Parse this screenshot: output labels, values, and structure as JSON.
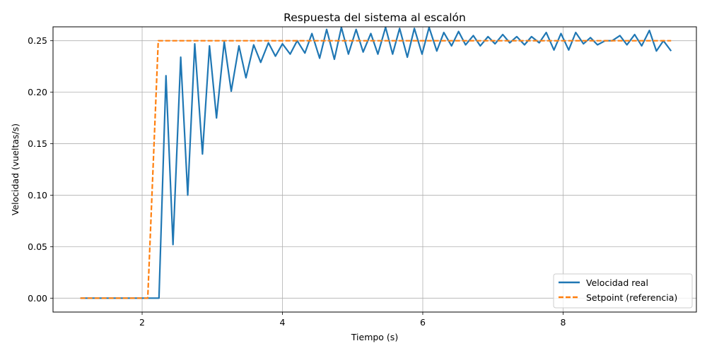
{
  "chart_data": {
    "type": "line",
    "title": "Respuesta del sistema al escalón",
    "xlabel": "Tiempo (s)",
    "ylabel": "Velocidad (vueltas/s)",
    "xlim": [
      0.73,
      9.9
    ],
    "ylim": [
      -0.0135,
      0.2635
    ],
    "xticks": [
      2,
      4,
      6,
      8
    ],
    "xtick_labels": [
      "2",
      "4",
      "6",
      "8"
    ],
    "yticks": [
      0.0,
      0.05,
      0.1,
      0.15,
      0.2,
      0.25
    ],
    "ytick_labels": [
      "0.00",
      "0.05",
      "0.10",
      "0.15",
      "0.20",
      "0.25"
    ],
    "grid": true,
    "legend_position": "lower-right",
    "series": [
      {
        "name": "Velocidad real",
        "color": "#1f77b4",
        "style": "solid",
        "x": [
          1.12,
          1.22,
          1.33,
          1.43,
          1.54,
          1.64,
          1.75,
          1.85,
          1.96,
          2.06,
          2.17,
          2.24,
          2.34,
          2.44,
          2.55,
          2.65,
          2.75,
          2.86,
          2.96,
          3.06,
          3.17,
          3.27,
          3.38,
          3.48,
          3.59,
          3.69,
          3.8,
          3.9,
          4.0,
          4.11,
          4.21,
          4.32,
          4.42,
          4.53,
          4.63,
          4.74,
          4.84,
          4.94,
          5.05,
          5.15,
          5.26,
          5.36,
          5.47,
          5.57,
          5.67,
          5.78,
          5.88,
          5.99,
          6.09,
          6.2,
          6.3,
          6.41,
          6.51,
          6.61,
          6.72,
          6.82,
          6.93,
          7.03,
          7.14,
          7.24,
          7.34,
          7.45,
          7.55,
          7.66,
          7.76,
          7.87,
          7.97,
          8.08,
          8.18,
          8.29,
          8.39,
          8.49,
          8.6,
          8.7,
          8.81,
          8.91,
          9.02,
          9.12,
          9.23,
          9.33,
          9.43,
          9.54
        ],
        "y": [
          0.0,
          0.0,
          0.0,
          0.0,
          0.0,
          0.0,
          0.0,
          0.0,
          0.0,
          0.0,
          0.0,
          0.0,
          0.216,
          0.052,
          0.234,
          0.1,
          0.247,
          0.14,
          0.245,
          0.175,
          0.249,
          0.201,
          0.245,
          0.214,
          0.246,
          0.229,
          0.248,
          0.235,
          0.247,
          0.237,
          0.25,
          0.238,
          0.257,
          0.233,
          0.261,
          0.232,
          0.263,
          0.237,
          0.261,
          0.239,
          0.257,
          0.237,
          0.263,
          0.237,
          0.262,
          0.234,
          0.262,
          0.237,
          0.263,
          0.24,
          0.258,
          0.245,
          0.259,
          0.246,
          0.255,
          0.245,
          0.254,
          0.247,
          0.256,
          0.248,
          0.254,
          0.246,
          0.254,
          0.248,
          0.258,
          0.241,
          0.257,
          0.241,
          0.258,
          0.247,
          0.253,
          0.246,
          0.25,
          0.25,
          0.255,
          0.246,
          0.256,
          0.245,
          0.26,
          0.24,
          0.25,
          0.24
        ]
      },
      {
        "name": "Setpoint (referencia)",
        "color": "#ff7f0e",
        "style": "dashed",
        "x": [
          1.12,
          2.08,
          2.23,
          9.54
        ],
        "y": [
          0.0,
          0.0,
          0.25,
          0.25
        ]
      }
    ]
  }
}
